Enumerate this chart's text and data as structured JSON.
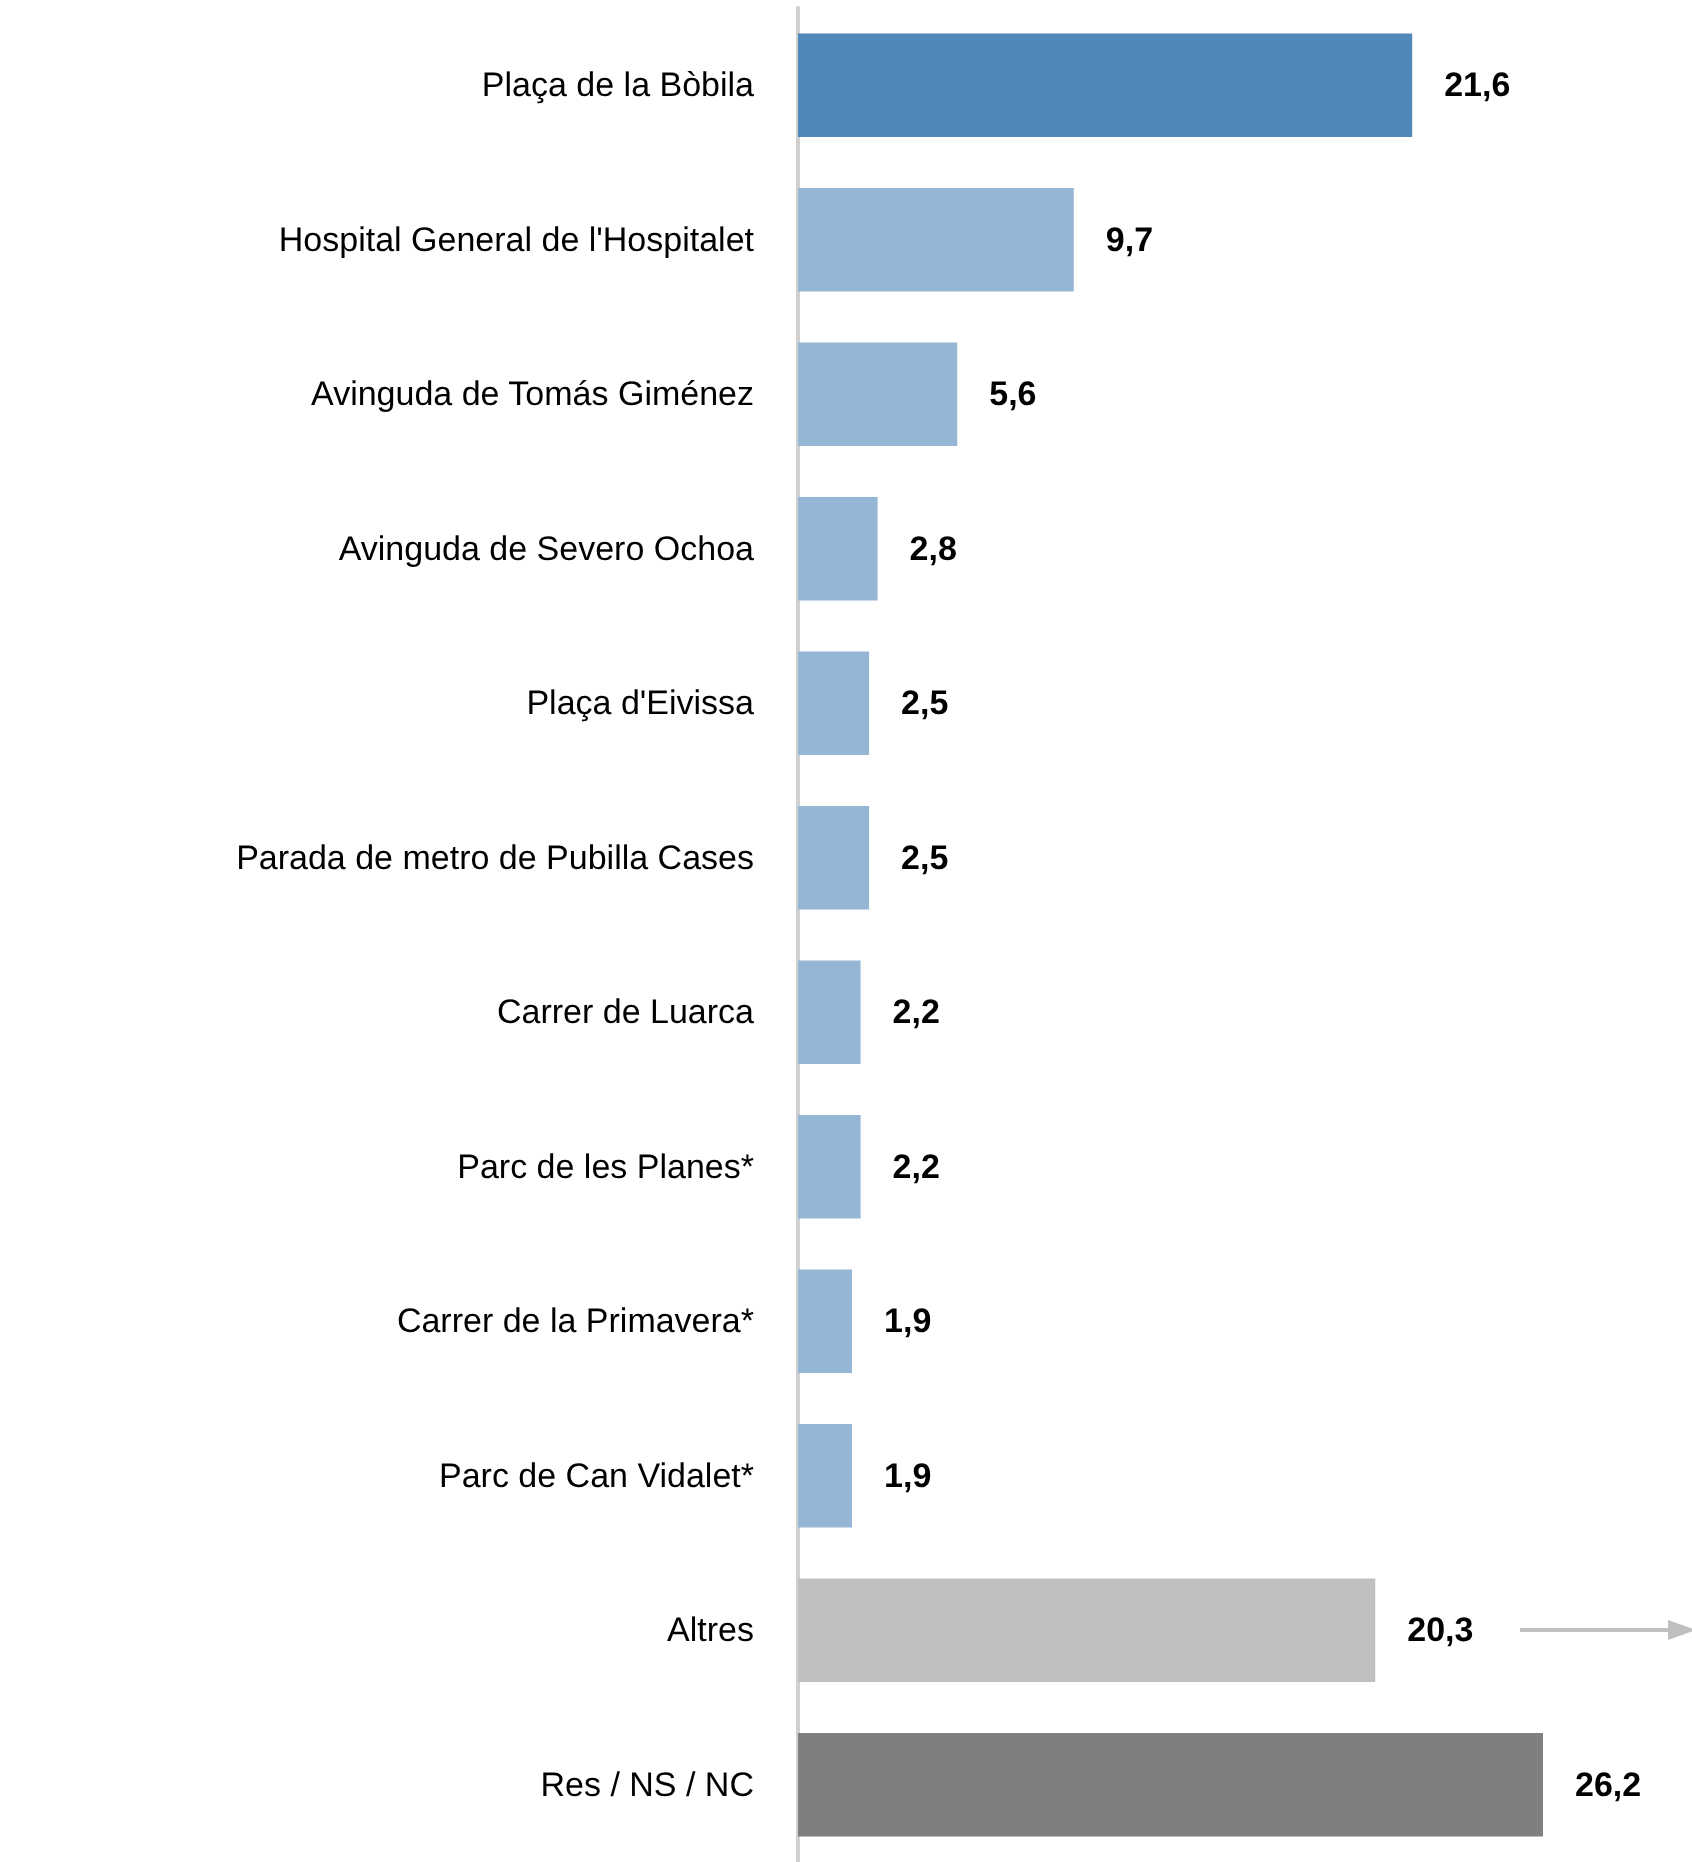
{
  "chart_data": {
    "type": "bar",
    "orientation": "horizontal",
    "value_labels": [
      "21,6",
      "9,7",
      "5,6",
      "2,8",
      "2,5",
      "2,5",
      "2,2",
      "2,2",
      "1,9",
      "1,9",
      "20,3",
      "26,2"
    ],
    "categories": [
      "Plaça de la Bòbila",
      "Hospital General de l'Hospitalet",
      "Avinguda de Tomás Giménez",
      "Avinguda de Severo Ochoa",
      "Plaça d'Eivissa",
      "Parada de metro de Pubilla Cases",
      "Carrer de Luarca",
      "Parc de les Planes*",
      "Carrer de la Primavera*",
      "Parc de Can Vidalet*",
      "Altres",
      "Res / NS / NC"
    ],
    "values": [
      21.6,
      9.7,
      5.6,
      2.8,
      2.5,
      2.5,
      2.2,
      2.2,
      1.9,
      1.9,
      20.3,
      26.2
    ],
    "colors": [
      "#5089b8",
      "#95b6d4",
      "#95b6d4",
      "#95b6d4",
      "#95b6d4",
      "#95b6d4",
      "#95b6d4",
      "#95b6d4",
      "#95b6d4",
      "#95b6d4",
      "#bfbfbf",
      "#7f7f7f"
    ]
  }
}
